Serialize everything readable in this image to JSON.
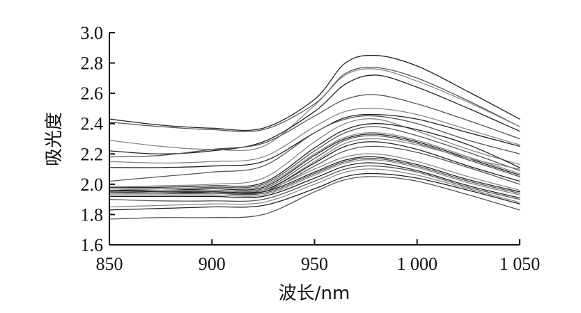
{
  "chart_data": {
    "type": "line",
    "title": "",
    "xlabel": "波长/nm",
    "ylabel": "吸光度",
    "xlim": [
      850,
      1050
    ],
    "ylim": [
      1.6,
      3.0
    ],
    "x_ticks": [
      850,
      900,
      950,
      1000,
      1050
    ],
    "x_tick_labels": [
      "850",
      "900",
      "950",
      "1 000",
      "1 050"
    ],
    "y_ticks": [
      1.6,
      1.8,
      2.0,
      2.2,
      2.4,
      2.6,
      2.8,
      3.0
    ],
    "y_tick_labels": [
      "1.6",
      "1.8",
      "2.0",
      "2.2",
      "2.4",
      "2.6",
      "2.8",
      "3.0"
    ],
    "grid": false,
    "legend": "none",
    "colors": {
      "line_dark": "#222222",
      "line_mid": "#555555",
      "line_light": "#888888",
      "axis": "#111111"
    },
    "x": [
      850,
      875,
      900,
      925,
      950,
      965,
      980,
      1000,
      1025,
      1050
    ],
    "series": [
      {
        "values": [
          2.43,
          2.39,
          2.37,
          2.37,
          2.56,
          2.8,
          2.85,
          2.78,
          2.61,
          2.43
        ]
      },
      {
        "values": [
          2.41,
          2.38,
          2.36,
          2.36,
          2.53,
          2.73,
          2.77,
          2.7,
          2.55,
          2.38
        ]
      },
      {
        "values": [
          2.29,
          2.25,
          2.23,
          2.25,
          2.52,
          2.72,
          2.76,
          2.68,
          2.54,
          2.38
        ]
      },
      {
        "values": [
          2.22,
          2.2,
          2.22,
          2.28,
          2.48,
          2.66,
          2.72,
          2.64,
          2.5,
          2.35
        ]
      },
      {
        "values": [
          2.18,
          2.19,
          2.23,
          2.27,
          2.45,
          2.56,
          2.59,
          2.53,
          2.42,
          2.3
        ]
      },
      {
        "values": [
          2.15,
          2.14,
          2.15,
          2.18,
          2.38,
          2.48,
          2.5,
          2.46,
          2.36,
          2.26
        ]
      },
      {
        "values": [
          2.11,
          2.11,
          2.12,
          2.15,
          2.34,
          2.44,
          2.46,
          2.43,
          2.34,
          2.25
        ]
      },
      {
        "values": [
          2.02,
          2.05,
          2.08,
          2.12,
          2.34,
          2.43,
          2.45,
          2.4,
          2.29,
          2.2
        ]
      },
      {
        "values": [
          1.98,
          1.99,
          2.0,
          2.04,
          2.28,
          2.4,
          2.43,
          2.35,
          2.23,
          2.13
        ]
      },
      {
        "values": [
          1.98,
          1.98,
          1.99,
          2.01,
          2.24,
          2.36,
          2.4,
          2.36,
          2.26,
          2.11
        ]
      },
      {
        "values": [
          1.97,
          1.97,
          1.98,
          2.0,
          2.22,
          2.34,
          2.38,
          2.32,
          2.21,
          2.09
        ]
      },
      {
        "values": [
          1.97,
          1.96,
          1.97,
          1.99,
          2.2,
          2.31,
          2.34,
          2.29,
          2.18,
          2.07
        ]
      },
      {
        "values": [
          1.96,
          1.96,
          1.97,
          1.98,
          2.19,
          2.3,
          2.33,
          2.28,
          2.17,
          2.06
        ]
      },
      {
        "values": [
          1.96,
          1.95,
          1.96,
          1.97,
          2.17,
          2.29,
          2.32,
          2.27,
          2.16,
          2.05
        ]
      },
      {
        "values": [
          1.95,
          1.95,
          1.95,
          1.96,
          2.15,
          2.27,
          2.3,
          2.26,
          2.17,
          2.1
        ]
      },
      {
        "values": [
          1.95,
          1.94,
          1.95,
          1.96,
          2.14,
          2.25,
          2.28,
          2.23,
          2.12,
          2.02
        ]
      },
      {
        "values": [
          1.94,
          1.94,
          1.94,
          1.95,
          2.12,
          2.22,
          2.25,
          2.21,
          2.11,
          2.0
        ]
      },
      {
        "values": [
          1.97,
          1.96,
          1.96,
          1.96,
          2.1,
          2.18,
          2.2,
          2.15,
          2.05,
          1.96
        ]
      },
      {
        "values": [
          1.96,
          1.95,
          1.95,
          1.95,
          2.08,
          2.16,
          2.18,
          2.13,
          2.03,
          1.95
        ]
      },
      {
        "values": [
          1.95,
          1.94,
          1.94,
          1.94,
          2.07,
          2.15,
          2.17,
          2.12,
          2.02,
          1.94
        ]
      },
      {
        "values": [
          1.93,
          1.93,
          1.93,
          1.93,
          2.06,
          2.14,
          2.16,
          2.11,
          2.01,
          1.93
        ]
      },
      {
        "values": [
          1.92,
          1.92,
          1.92,
          1.92,
          2.04,
          2.12,
          2.14,
          2.09,
          1.99,
          1.91
        ]
      },
      {
        "values": [
          1.9,
          1.89,
          1.89,
          1.9,
          2.02,
          2.1,
          2.12,
          2.08,
          1.98,
          1.9
        ]
      },
      {
        "values": [
          1.85,
          1.86,
          1.87,
          1.88,
          2.0,
          2.08,
          2.1,
          2.06,
          1.97,
          1.88
        ]
      },
      {
        "values": [
          1.83,
          1.84,
          1.85,
          1.86,
          1.97,
          2.05,
          2.07,
          2.04,
          1.96,
          1.87
        ]
      },
      {
        "values": [
          1.77,
          1.78,
          1.78,
          1.8,
          1.95,
          2.03,
          2.05,
          2.02,
          1.93,
          1.83
        ]
      }
    ]
  }
}
